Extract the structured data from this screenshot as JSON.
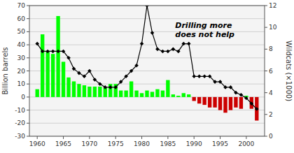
{
  "chart_data": {
    "type": "bar",
    "x": [
      1960,
      1961,
      1962,
      1963,
      1964,
      1965,
      1966,
      1967,
      1968,
      1969,
      1970,
      1971,
      1972,
      1973,
      1974,
      1975,
      1976,
      1977,
      1978,
      1979,
      1980,
      1981,
      1982,
      1983,
      1984,
      1985,
      1986,
      1987,
      1988,
      1989,
      1990,
      1991,
      1992,
      1993,
      1994,
      1995,
      1996,
      1997,
      1998,
      1999,
      2000,
      2001,
      2002
    ],
    "series": [
      {
        "type": "bar",
        "values": [
          6,
          48,
          35,
          33,
          62,
          27,
          15,
          12,
          10,
          9,
          8,
          8,
          8,
          7,
          10,
          10,
          5,
          5,
          12,
          5,
          3,
          5,
          4,
          6,
          5,
          13,
          2,
          1,
          3,
          2,
          -3,
          -5,
          -6,
          -8,
          -8,
          -10,
          -12,
          -10,
          -8,
          -9,
          1,
          -9,
          -18
        ],
        "colors": [
          "#00ff00",
          "#00ff00",
          "#00ff00",
          "#00ff00",
          "#00ff00",
          "#00ff00",
          "#00ff00",
          "#00ff00",
          "#00ff00",
          "#00ff00",
          "#00ff00",
          "#00ff00",
          "#00ff00",
          "#00ff00",
          "#00ff00",
          "#00ff00",
          "#00ff00",
          "#00ff00",
          "#00ff00",
          "#00ff00",
          "#00ff00",
          "#00ff00",
          "#00ff00",
          "#00ff00",
          "#00ff00",
          "#00ff00",
          "#00ff00",
          "#00ff00",
          "#00ff00",
          "#00ff00",
          "#cc0000",
          "#cc0000",
          "#cc0000",
          "#cc0000",
          "#cc0000",
          "#cc0000",
          "#cc0000",
          "#cc0000",
          "#cc0000",
          "#cc0000",
          "#00ff00",
          "#cc0000",
          "#cc0000"
        ]
      },
      {
        "type": "line",
        "axis": "y2",
        "color": "#000000",
        "marker": "diamond",
        "values": [
          8.5,
          7.8,
          7.8,
          7.8,
          7.8,
          7.8,
          7.2,
          6.2,
          5.8,
          5.5,
          6.0,
          5.2,
          4.8,
          4.5,
          4.5,
          4.5,
          5.0,
          5.5,
          6.0,
          6.5,
          8.5,
          12.0,
          9.5,
          8.0,
          7.8,
          7.8,
          8.0,
          7.8,
          8.5,
          8.5,
          5.5,
          5.5,
          5.5,
          5.5,
          5.0,
          5.0,
          4.5,
          4.5,
          4.0,
          3.8,
          3.5,
          3.0,
          2.5
        ]
      }
    ],
    "ylabel": "Billion barrels",
    "y2label": "Wildcats (×1000)",
    "annotation": "Drilling more\ndoes not help",
    "xlim": [
      1958.5,
      2003.5
    ],
    "xticks": [
      1960,
      1965,
      1970,
      1975,
      1980,
      1985,
      1990,
      1995,
      2000
    ],
    "ylim": [
      -30,
      70
    ],
    "yticks": [
      -30,
      -20,
      -10,
      0,
      10,
      20,
      30,
      40,
      50,
      60,
      70
    ],
    "y2lim": [
      0,
      12
    ],
    "y2ticks": [
      0,
      2,
      4,
      6,
      8,
      10,
      12
    ],
    "grid": true
  }
}
